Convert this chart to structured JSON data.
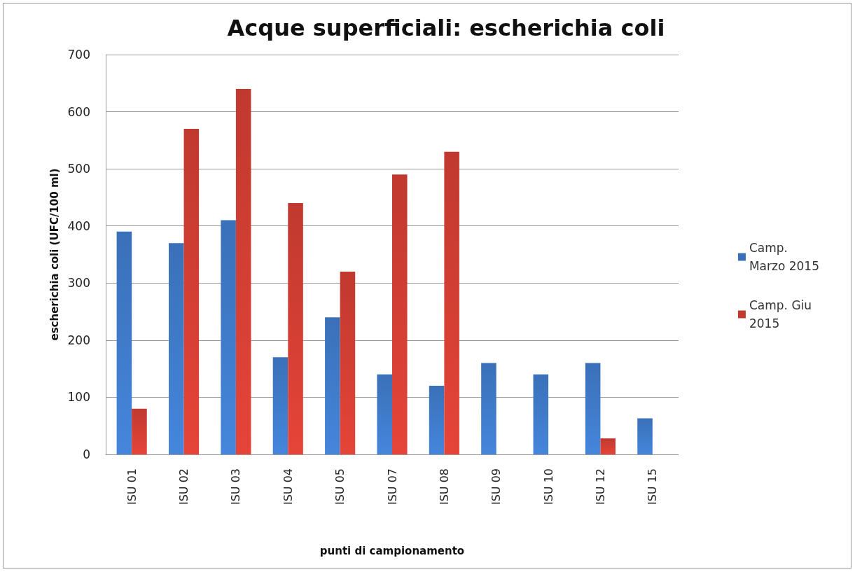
{
  "chart_data": {
    "type": "bar",
    "title": "Acque superficiali: escherichia coli",
    "xlabel": "punti di campionamento",
    "ylabel": "escherichia coli (UFC/100 ml)",
    "categories": [
      "ISU 01",
      "ISU 02",
      "ISU 03",
      "ISU 04",
      "ISU 05",
      "ISU 07",
      "ISU 08",
      "ISU 09",
      "ISU 10",
      "ISU 12",
      "ISU 15"
    ],
    "series": [
      {
        "name": "Camp.\nMarzo 2015",
        "color": "#3a70b8",
        "values": [
          390,
          370,
          410,
          170,
          240,
          140,
          120,
          160,
          140,
          160,
          63
        ]
      },
      {
        "name": "Camp. Giu\n2015",
        "color": "#c0392f",
        "values": [
          80,
          570,
          640,
          440,
          320,
          490,
          530,
          null,
          null,
          28,
          null
        ]
      }
    ],
    "ylim": [
      0,
      700
    ],
    "yticks": [
      0,
      100,
      200,
      300,
      400,
      500,
      600,
      700
    ],
    "grid": "y",
    "legend": "right"
  }
}
